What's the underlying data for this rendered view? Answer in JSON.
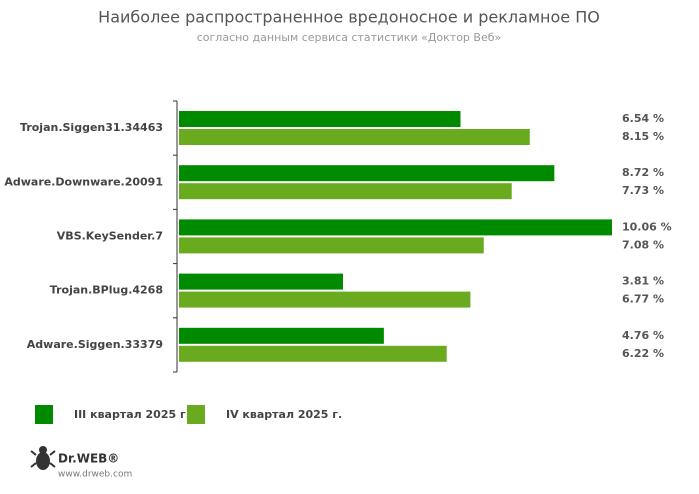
{
  "chart_data": {
    "type": "bar",
    "orientation": "horizontal",
    "title": "Наиболее распространенное вредоносное и рекламное ПО",
    "subtitle": "согласно данным сервиса статистики «Доктор Веб»",
    "categories": [
      "Trojan.Siggen31.34463",
      "Adware.Downware.20091",
      "VBS.KeySender.7",
      "Trojan.BPlug.4268",
      "Adware.Siggen.33379"
    ],
    "series": [
      {
        "name": "III квартал 2025 г.",
        "color": "#008a00",
        "values": [
          6.54,
          8.72,
          10.06,
          3.81,
          4.76
        ],
        "value_labels": [
          "6.54 %",
          "8.72 %",
          "10.06 %",
          "3.81 %",
          "4.76 %"
        ]
      },
      {
        "name": "IV квартал 2025 г.",
        "color": "#6aaa1e",
        "values": [
          8.15,
          7.73,
          7.08,
          6.77,
          6.22
        ],
        "value_labels": [
          "8.15 %",
          "7.73 %",
          "7.08 %",
          "6.77 %",
          "6.22 %"
        ]
      }
    ],
    "legend": "bottom-left",
    "brand": "Dr.WEB®",
    "website": "www.drweb.com"
  }
}
